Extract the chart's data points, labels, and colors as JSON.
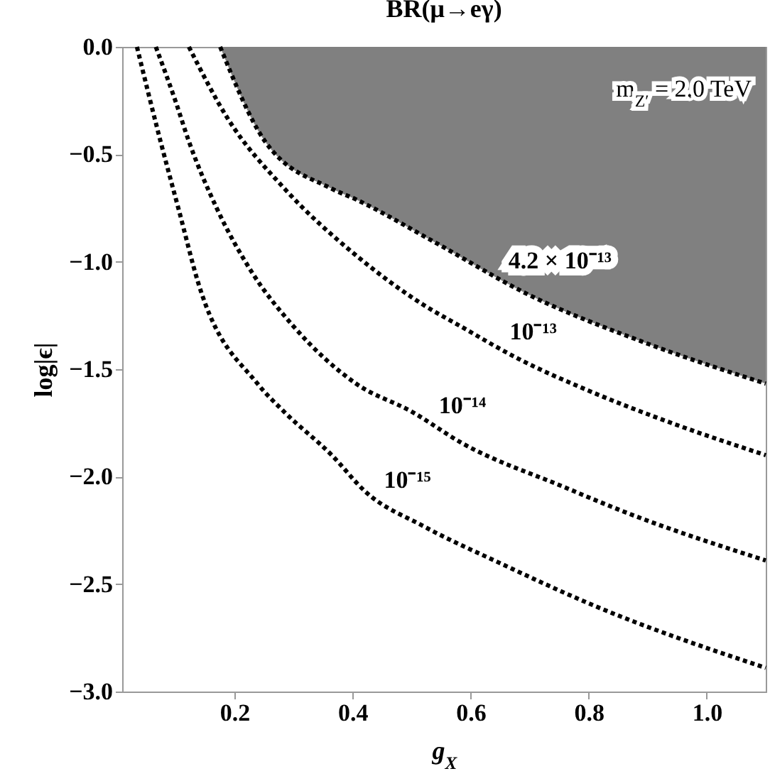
{
  "chart_data": {
    "type": "line",
    "title": "BR(μ→eγ)",
    "xlabel": "g$_{X}$",
    "ylabel": "log|ϵ|",
    "xlim": [
      0.01,
      1.1
    ],
    "ylim": [
      -3,
      0
    ],
    "xticks": [
      0.2,
      0.4,
      0.6,
      0.8,
      {
        "value": 1,
        "label": "1.0"
      }
    ],
    "yticks": [
      {
        "value": -3,
        "label": "−3.0"
      },
      {
        "value": -2.5,
        "label": "−2.5"
      },
      {
        "value": -2,
        "label": "−2.0"
      },
      {
        "value": -1.5,
        "label": "−1.5"
      },
      {
        "value": -1,
        "label": "−1.0"
      },
      {
        "value": -0.5,
        "label": "−0.5"
      },
      {
        "value": 0,
        "label": "0.0"
      }
    ],
    "grid": false,
    "legend": false,
    "line_style": "dotted",
    "marker": "none",
    "series": [
      {
        "type": "area",
        "color": "#808080",
        "x": [
          0.176,
          0.252,
          0.365,
          0.406,
          0.54,
          0.696,
          0.889,
          1.1
        ],
        "values": [
          0,
          -0.44,
          -0.66,
          -0.71,
          -0.91,
          -1.15,
          -1.37,
          -1.567
        ]
      },
      {
        "color": "#000000",
        "x": [
          0.123,
          0.188,
          0.285,
          0.406,
          0.52,
          0.583,
          0.68,
          0.8,
          0.95,
          1.1
        ],
        "values": [
          0,
          -0.33,
          -0.66,
          -0.97,
          -1.2,
          -1.3,
          -1.45,
          -1.6,
          -1.76,
          -1.9
        ]
      },
      {
        "color": "#000000",
        "x": [
          0.067,
          0.1,
          0.123,
          0.17,
          0.23,
          0.3,
          0.406,
          0.502,
          0.583,
          0.76,
          0.857,
          1.1
        ],
        "values": [
          0,
          -0.25,
          -0.44,
          -0.75,
          -1.05,
          -1.3,
          -1.567,
          -1.7,
          -1.84,
          -2.05,
          -2.16,
          -2.39
        ]
      },
      {
        "color": "#000000",
        "x": [
          0.035,
          0.075,
          0.107,
          0.139,
          0.24,
          0.285,
          0.365,
          0.422,
          0.52,
          0.648,
          0.809,
          1.1
        ],
        "values": [
          0,
          -0.44,
          -0.77,
          -1.1,
          -1.57,
          -1.7,
          -1.9,
          -2.07,
          -2.23,
          -2.4,
          -2.6,
          -2.89
        ]
      }
    ],
    "annotations": [
      {
        "text": "4.2 × 10⁻¹³",
        "x": 0.645,
        "y": -1.07
      },
      {
        "text": "10⁻¹³",
        "x": 0.647,
        "y": -1.4
      },
      {
        "text": "10⁻¹⁴",
        "x": 0.527,
        "y": -1.745
      },
      {
        "text": "10⁻¹⁵",
        "x": 0.434,
        "y": -2.09
      },
      "m$_{Z′}$ = 2.0 TeV"
    ]
  }
}
